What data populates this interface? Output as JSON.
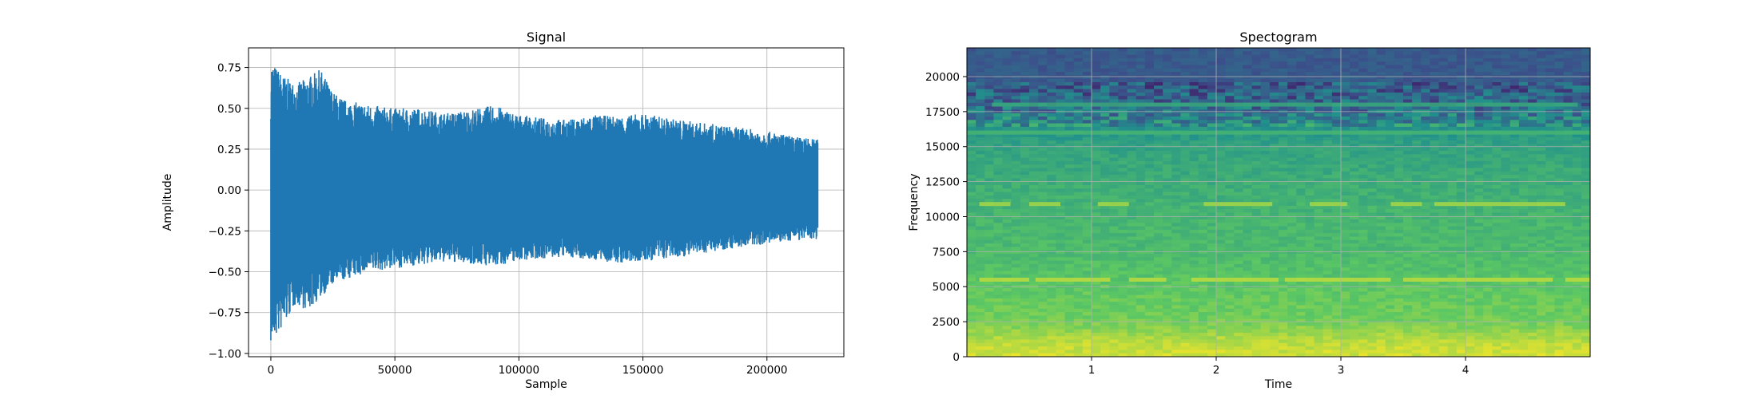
{
  "chart_data": [
    {
      "type": "line",
      "title": "Signal",
      "xlabel": "Sample",
      "ylabel": "Amplitude",
      "xlim": [
        -9000,
        231000
      ],
      "ylim": [
        -1.02,
        0.87
      ],
      "grid": true,
      "xticks": [
        0,
        50000,
        100000,
        150000,
        200000
      ],
      "xtick_labels": [
        "0",
        "50000",
        "100000",
        "150000",
        "200000"
      ],
      "yticks": [
        -1.0,
        -0.75,
        -0.5,
        -0.25,
        0.0,
        0.25,
        0.5,
        0.75
      ],
      "ytick_labels": [
        "−1.00",
        "−0.75",
        "−0.50",
        "−0.25",
        "0.00",
        "0.25",
        "0.50",
        "0.75"
      ],
      "color": "#1f77b4",
      "series": [
        {
          "x": [
            0,
            5000,
            10000,
            15000,
            20000,
            25000,
            30000,
            40000,
            50000,
            60000,
            70000,
            80000,
            90000,
            100000,
            110000,
            120000,
            130000,
            140000,
            150000,
            160000,
            170000,
            180000,
            190000,
            200000,
            210000,
            220500
          ],
          "upper": [
            0.79,
            0.7,
            0.65,
            0.69,
            0.74,
            0.6,
            0.55,
            0.52,
            0.5,
            0.5,
            0.47,
            0.49,
            0.52,
            0.46,
            0.44,
            0.43,
            0.46,
            0.45,
            0.47,
            0.44,
            0.42,
            0.4,
            0.38,
            0.36,
            0.33,
            0.31
          ],
          "lower": [
            -0.94,
            -0.84,
            -0.7,
            -0.74,
            -0.66,
            -0.58,
            -0.55,
            -0.5,
            -0.48,
            -0.46,
            -0.44,
            -0.45,
            -0.47,
            -0.43,
            -0.42,
            -0.41,
            -0.43,
            -0.45,
            -0.44,
            -0.42,
            -0.4,
            -0.37,
            -0.35,
            -0.33,
            -0.31,
            -0.3
          ]
        }
      ]
    },
    {
      "type": "heatmap",
      "title": "Spectogram",
      "xlabel": "Time",
      "ylabel": "Frequency",
      "xlim": [
        0,
        5
      ],
      "ylim": [
        0,
        22050
      ],
      "grid": true,
      "xticks": [
        1,
        2,
        3,
        4
      ],
      "xtick_labels": [
        "1",
        "2",
        "3",
        "4"
      ],
      "yticks": [
        0,
        2500,
        5000,
        7500,
        10000,
        12500,
        15000,
        17500,
        20000
      ],
      "ytick_labels": [
        "0",
        "2500",
        "5000",
        "7500",
        "10000",
        "12500",
        "15000",
        "17500",
        "20000"
      ],
      "colormap": "viridis",
      "band_levels": [
        {
          "freq": 0,
          "level": 0.93
        },
        {
          "freq": 1000,
          "level": 0.9
        },
        {
          "freq": 2500,
          "level": 0.78
        },
        {
          "freq": 5000,
          "level": 0.74
        },
        {
          "freq": 7500,
          "level": 0.68
        },
        {
          "freq": 10000,
          "level": 0.66
        },
        {
          "freq": 12500,
          "level": 0.62
        },
        {
          "freq": 15000,
          "level": 0.58
        },
        {
          "freq": 16500,
          "level": 0.5
        },
        {
          "freq": 17500,
          "level": 0.38
        },
        {
          "freq": 19000,
          "level": 0.3
        },
        {
          "freq": 19500,
          "level": 0.28
        },
        {
          "freq": 22050,
          "level": 0.28
        }
      ],
      "harmonic_lines": [
        {
          "freq": 5500,
          "level": 0.9,
          "segments": [
            [
              0.1,
              0.5
            ],
            [
              0.55,
              1.15
            ],
            [
              1.3,
              1.6
            ],
            [
              1.8,
              2.5
            ],
            [
              2.55,
              3.4
            ],
            [
              3.5,
              4.7
            ],
            [
              4.8,
              5.0
            ]
          ]
        },
        {
          "freq": 10900,
          "level": 0.86,
          "segments": [
            [
              0.1,
              0.35
            ],
            [
              0.5,
              0.75
            ],
            [
              1.05,
              1.3
            ],
            [
              1.9,
              2.45
            ],
            [
              2.75,
              3.05
            ],
            [
              3.4,
              3.65
            ],
            [
              3.75,
              4.8
            ]
          ]
        },
        {
          "freq": 16000,
          "level": 0.66,
          "segments": [
            [
              0.0,
              5.0
            ]
          ]
        },
        {
          "freq": 18000,
          "level": 0.6,
          "segments": [
            [
              0.2,
              4.9
            ]
          ]
        }
      ]
    }
  ]
}
